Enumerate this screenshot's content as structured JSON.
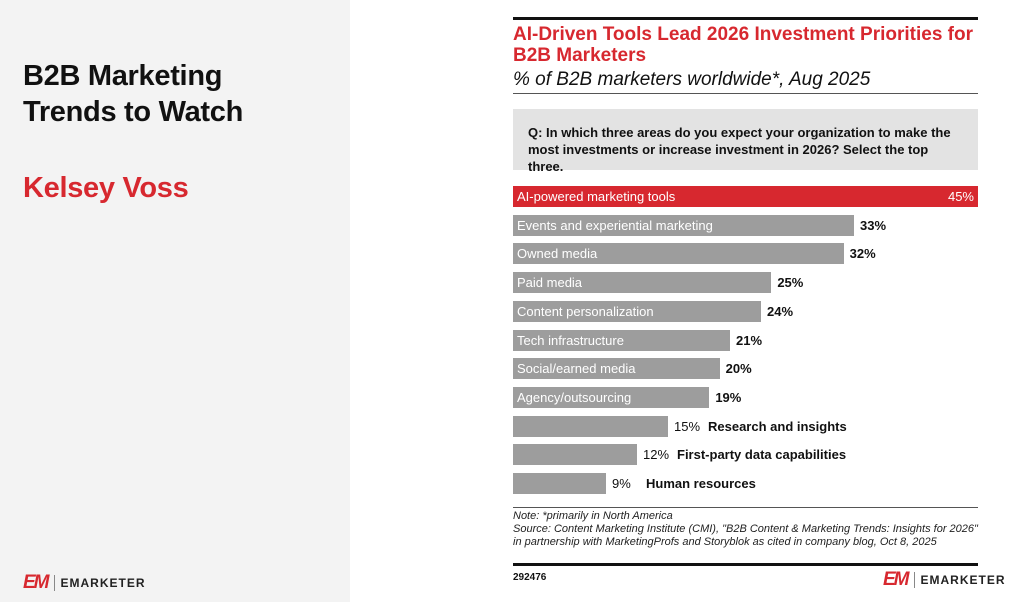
{
  "slide": {
    "title_line1": "B2B Marketing",
    "title_line2": "Trends to Watch",
    "author": "Kelsey Voss",
    "logo_mark": "EM",
    "logo_word": "EMARKETER"
  },
  "chart_data": {
    "type": "bar",
    "orientation": "horizontal",
    "title": "AI-Driven Tools Lead 2026 Investment Priorities for B2B Marketers",
    "subtitle": "% of B2B marketers worldwide*, Aug 2025",
    "question": "Q: In which three areas do you expect your organization to make the most investments or increase investment in 2026? Select the top three.",
    "categories": [
      "AI-powered marketing tools",
      "Events and experiential marketing",
      "Owned media",
      "Paid media",
      "Content personalization",
      "Tech infrastructure",
      "Social/earned media",
      "Agency/outsourcing",
      "Research and insights",
      "First-party data capabilities",
      "Human resources"
    ],
    "values": [
      45,
      33,
      32,
      25,
      24,
      21,
      20,
      19,
      15,
      12,
      9
    ],
    "value_labels": [
      "45%",
      "33%",
      "32%",
      "25%",
      "24%",
      "21%",
      "20%",
      "19%",
      "15%",
      "12%",
      "9%"
    ],
    "unit": "%",
    "xlim": [
      0,
      45
    ],
    "highlight_index": 0,
    "colors": {
      "highlight": "#d7282f",
      "default": "#9d9d9d"
    },
    "grid": false,
    "note": "Note: *primarily in North America",
    "source": "Source: Content Marketing Institute (CMI), \"B2B Content & Marketing Trends: Insights for 2026\" in partnership with MarketingProfs and Storyblok as cited in company blog, Oct 8, 2025",
    "chart_id": "292476"
  }
}
